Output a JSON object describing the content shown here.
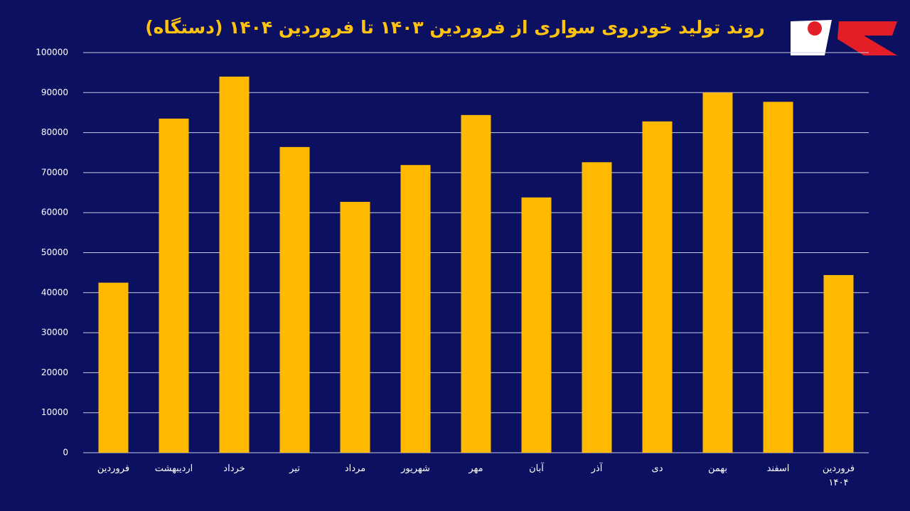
{
  "chart_data": {
    "type": "bar",
    "title": "روند تولید خودروی سواری از فروردین ۱۴۰۳ تا فروردین ۱۴۰۴ (دستگاه)",
    "categories": [
      "فروردین",
      "اردیبهشت",
      "خرداد",
      "تیر",
      "مرداد",
      "شهریور",
      "مهر",
      "آبان",
      "آذر",
      "دی",
      "بهمن",
      "اسفند",
      "فروردین\n۱۴۰۴"
    ],
    "values": [
      42500,
      83500,
      94000,
      76400,
      62700,
      71900,
      84400,
      63800,
      72600,
      82800,
      90000,
      87700,
      44400
    ],
    "color": "#ffb900",
    "ylim": [
      0,
      100000
    ],
    "yticks": [
      0,
      10000,
      20000,
      30000,
      40000,
      50000,
      60000,
      70000,
      80000,
      90000,
      100000
    ],
    "grid": true
  }
}
